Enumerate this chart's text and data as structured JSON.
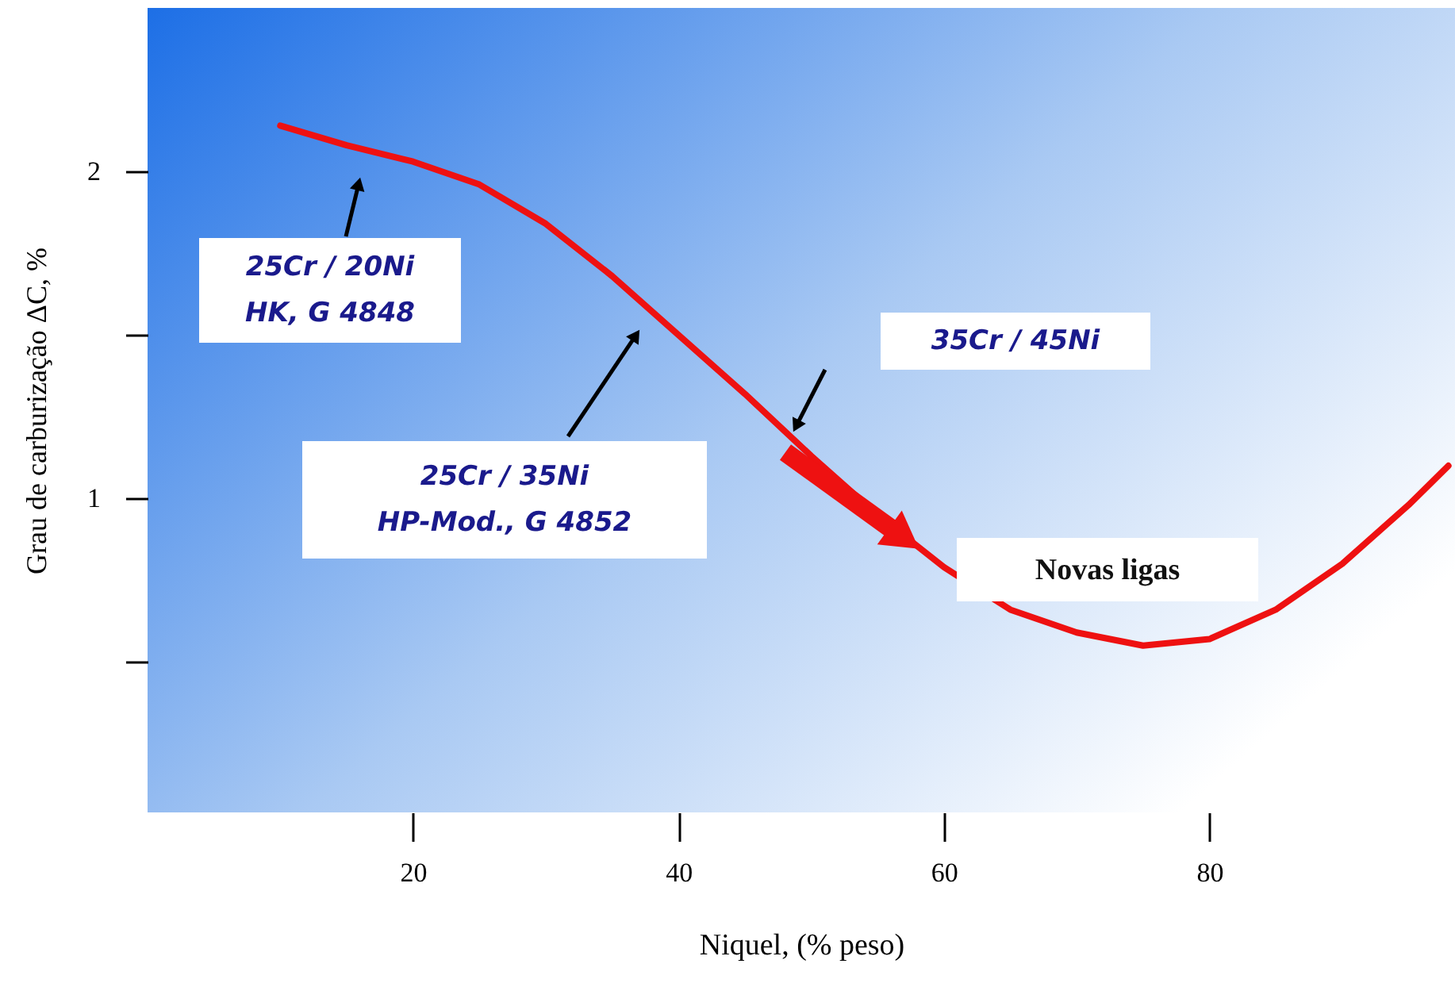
{
  "chart_data": {
    "type": "line",
    "xlabel": "Niquel, (% peso)",
    "ylabel": "Grau de carburização ΔC, %",
    "x": [
      10,
      15,
      20,
      25,
      30,
      35,
      40,
      45,
      50,
      55,
      60,
      65,
      70,
      75,
      80,
      85,
      90,
      95,
      98
    ],
    "series": [
      {
        "color": "#ee1111",
        "values": [
          2.14,
          2.08,
          2.03,
          1.96,
          1.84,
          1.68,
          1.5,
          1.32,
          1.13,
          0.95,
          0.79,
          0.66,
          0.59,
          0.55,
          0.57,
          0.66,
          0.8,
          0.98,
          1.1
        ]
      }
    ],
    "xlim": [
      0,
      98.5
    ],
    "ylim": [
      0.04,
      2.5
    ],
    "xticks": [
      20,
      40,
      60,
      80
    ],
    "yticks": [
      {
        "value": 0.5,
        "label": null
      },
      1,
      {
        "value": 1.5,
        "label": null
      },
      2
    ],
    "grid": false,
    "marker": "none",
    "line_style": "solid",
    "annotations": [
      "25Cr / 20Ni\nHK, G 4848",
      "25Cr / 35Ni\nHP-Mod., G 4852",
      "35Cr / 45Ni",
      "Novas ligas"
    ]
  }
}
